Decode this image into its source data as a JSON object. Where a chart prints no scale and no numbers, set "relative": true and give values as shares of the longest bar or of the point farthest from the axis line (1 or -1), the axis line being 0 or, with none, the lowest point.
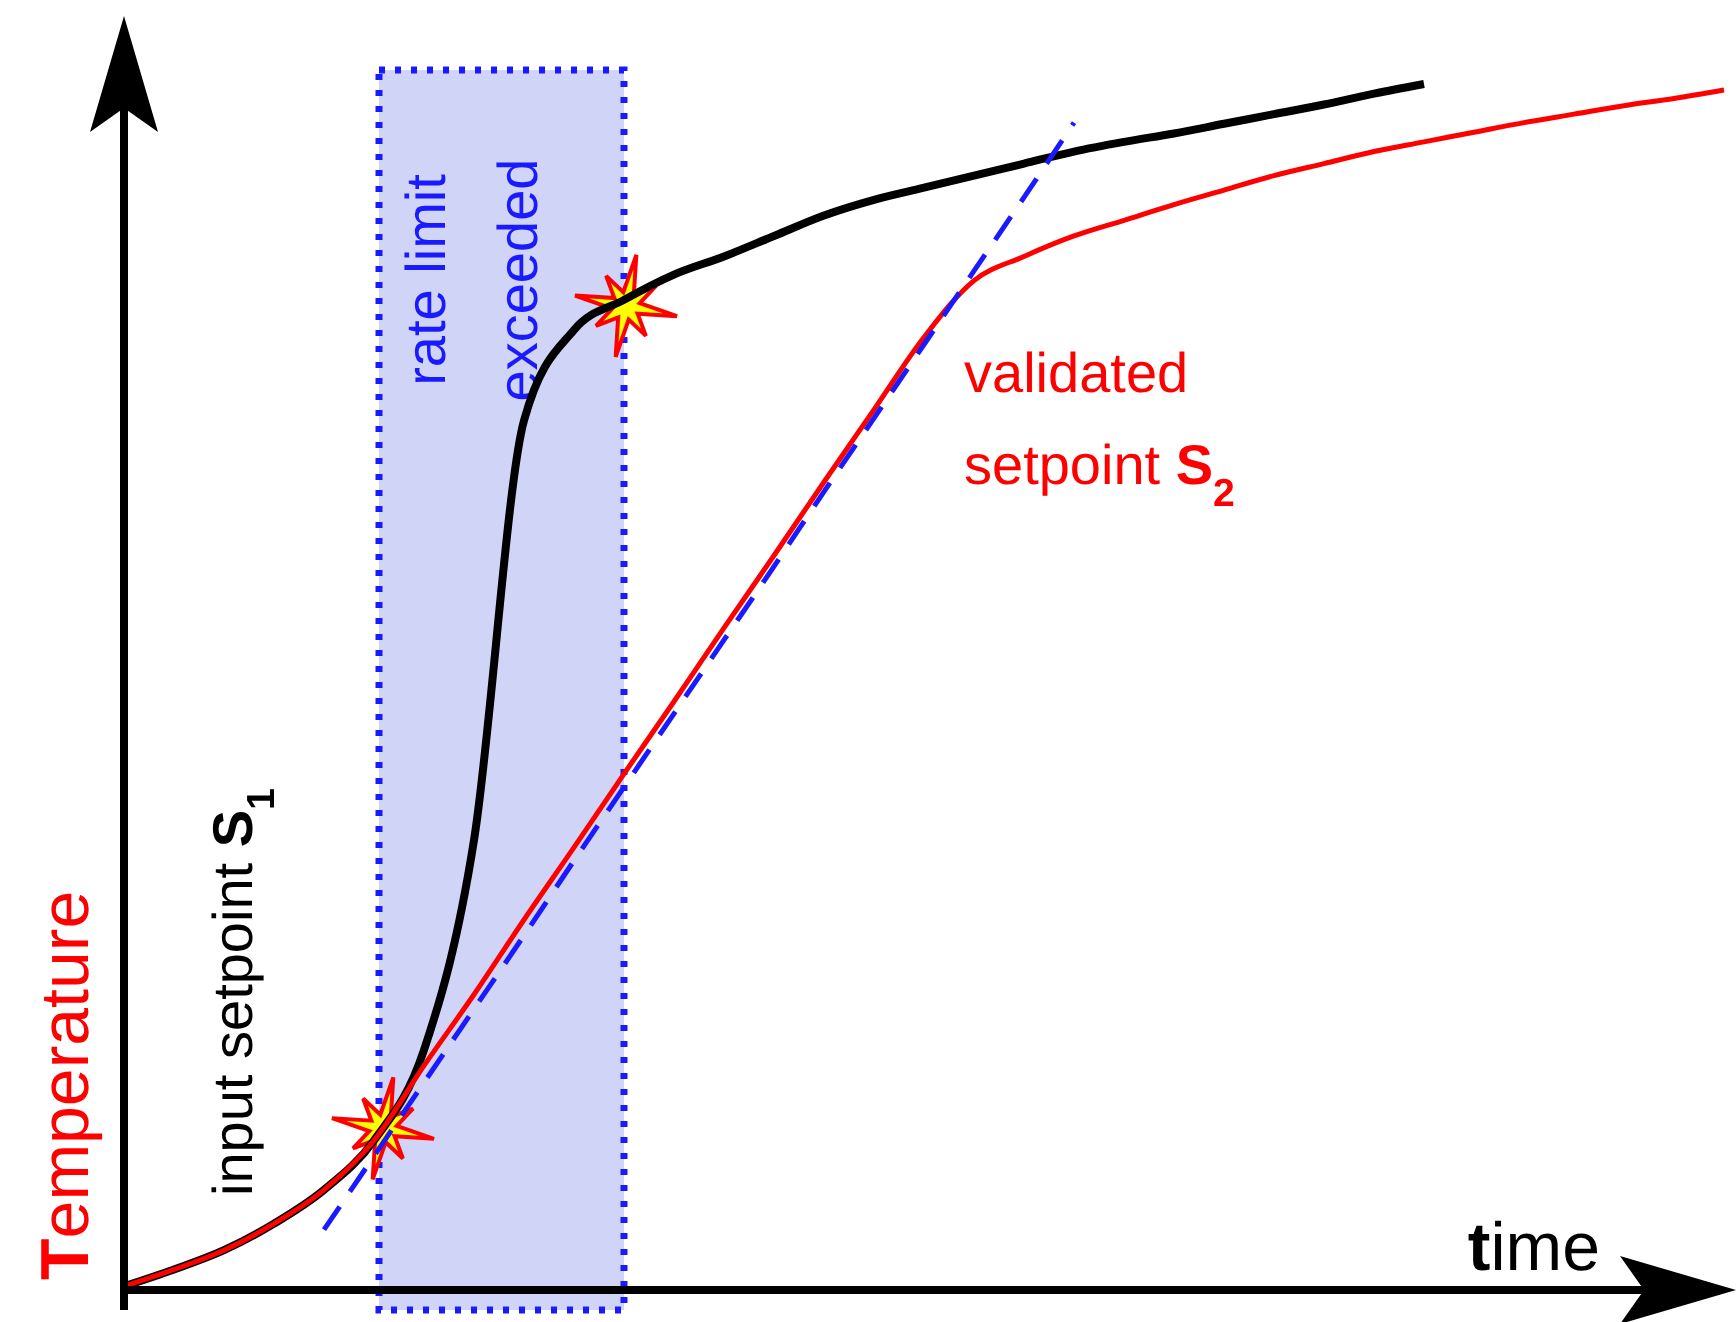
{
  "chart_data": {
    "type": "line",
    "relative": true,
    "xlabel": "time",
    "ylabel": "Temperature",
    "legend": false,
    "grid": false,
    "marker": "none",
    "categories": [
      null,
      null,
      null,
      null,
      null,
      null,
      null,
      null,
      null,
      null,
      null,
      null,
      null,
      null,
      null,
      null,
      null,
      null,
      null,
      null,
      null,
      null,
      null,
      null,
      null,
      null,
      null,
      null,
      null,
      null,
      null,
      null,
      null
    ],
    "series": [
      {
        "name": "input setpoint S$_{1}$",
        "color": "#000000",
        "line_style": "solid",
        "values": [
          0.003,
          0.017,
          0.033,
          0.055,
          0.083,
          0.124,
          0.199,
          0.373,
          0.721,
          0.796,
          0.821,
          0.842,
          0.857,
          0.874,
          0.891,
          0.904,
          0.914,
          0.924,
          0.934,
          0.944,
          0.952,
          0.959,
          0.967,
          0.975,
          0.983,
          0.992,
          1,
          null,
          null,
          null,
          null,
          null,
          null
        ]
      },
      {
        "name": "validated setpoint S$_{2}$",
        "color": "#ff0000",
        "line_style": "solid",
        "values": [
          0.003,
          0.017,
          0.033,
          0.055,
          0.083,
          0.124,
          0.186,
          0.245,
          0.307,
          0.367,
          0.428,
          0.488,
          0.549,
          0.609,
          0.67,
          0.73,
          0.79,
          0.837,
          0.857,
          0.874,
          0.887,
          0.9,
          0.912,
          0.924,
          0.934,
          0.944,
          0.952,
          0.96,
          0.968,
          0.975,
          0.982,
          0.988,
          0.995
        ]
      },
      {
        "color": "#1a1aff",
        "line_style": "dashed",
        "values": [
          null,
          null,
          null,
          null,
          0.05,
          0.111,
          0.172,
          0.233,
          0.294,
          0.356,
          0.417,
          0.478,
          0.539,
          0.6,
          0.662,
          0.723,
          0.784,
          0.845,
          0.906,
          0.968,
          null,
          null,
          null,
          null,
          null,
          null,
          null,
          null,
          null,
          null,
          null,
          null,
          null
        ]
      }
    ],
    "annotations": [
      "rate limit exceeded"
    ]
  }
}
